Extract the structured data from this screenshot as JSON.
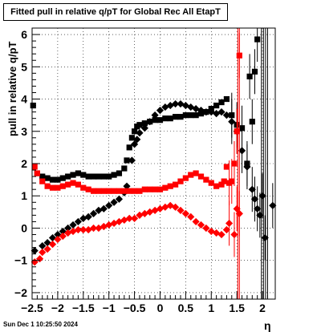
{
  "chart_data": {
    "type": "scatter",
    "title": "Fitted pull in relative q/pT for Global Rec All EtapT",
    "xlabel": "η",
    "ylabel": "pull in relative q/pT",
    "xlim": [
      -2.5,
      2.25
    ],
    "ylim": [
      -2.2,
      6.2
    ],
    "x_ticks": [
      "−2.5",
      "−2",
      "−1.5",
      "−1",
      "−0.5",
      "0",
      "0.5",
      "1",
      "1.5",
      "2"
    ],
    "y_ticks": [
      "−2",
      "−1",
      "0",
      "1",
      "2",
      "3",
      "4",
      "5",
      "6"
    ],
    "grid": true,
    "series": [
      {
        "color": "#000000",
        "marker": "square",
        "points": [
          [
            -2.48,
            3.8
          ],
          [
            -2.4,
            1.7
          ],
          [
            -2.3,
            1.6
          ],
          [
            -2.2,
            1.55
          ],
          [
            -2.1,
            1.5
          ],
          [
            -2.0,
            1.5
          ],
          [
            -1.9,
            1.55
          ],
          [
            -1.8,
            1.6
          ],
          [
            -1.7,
            1.65
          ],
          [
            -1.6,
            1.7
          ],
          [
            -1.5,
            1.65
          ],
          [
            -1.4,
            1.6
          ],
          [
            -1.3,
            1.6
          ],
          [
            -1.2,
            1.6
          ],
          [
            -1.1,
            1.6
          ],
          [
            -1.0,
            1.6
          ],
          [
            -0.9,
            1.65
          ],
          [
            -0.8,
            1.7
          ],
          [
            -0.7,
            1.85
          ],
          [
            -0.65,
            2.1
          ],
          [
            -0.6,
            2.5
          ],
          [
            -0.55,
            2.8
          ],
          [
            -0.5,
            3.0
          ],
          [
            -0.45,
            3.15
          ],
          [
            -0.4,
            3.2
          ],
          [
            -0.3,
            3.25
          ],
          [
            -0.2,
            3.3
          ],
          [
            -0.1,
            3.35
          ],
          [
            0.0,
            3.35
          ],
          [
            0.1,
            3.4
          ],
          [
            0.2,
            3.4
          ],
          [
            0.3,
            3.45
          ],
          [
            0.4,
            3.45
          ],
          [
            0.5,
            3.5
          ],
          [
            0.6,
            3.5
          ],
          [
            0.7,
            3.5
          ],
          [
            0.8,
            3.55
          ],
          [
            0.9,
            3.6
          ],
          [
            1.0,
            3.7
          ],
          [
            1.1,
            3.8
          ],
          [
            1.2,
            3.9
          ],
          [
            1.3,
            4.0
          ],
          [
            1.4,
            3.5
          ],
          [
            1.5,
            3.2
          ],
          [
            1.6,
            3.1
          ],
          [
            1.7,
            2.0
          ],
          [
            1.75,
            4.7
          ],
          [
            1.8,
            3.3
          ],
          [
            1.85,
            4.85
          ],
          [
            1.9,
            5.85
          ]
        ]
      },
      {
        "color": "#000000",
        "marker": "diamond",
        "points": [
          [
            -2.45,
            -0.7
          ],
          [
            -2.3,
            -0.55
          ],
          [
            -2.2,
            -0.45
          ],
          [
            -2.1,
            -0.3
          ],
          [
            -2.0,
            -0.2
          ],
          [
            -1.9,
            -0.1
          ],
          [
            -1.8,
            0.0
          ],
          [
            -1.7,
            0.1
          ],
          [
            -1.6,
            0.2
          ],
          [
            -1.5,
            0.3
          ],
          [
            -1.4,
            0.35
          ],
          [
            -1.3,
            0.45
          ],
          [
            -1.2,
            0.55
          ],
          [
            -1.1,
            0.6
          ],
          [
            -1.0,
            0.7
          ],
          [
            -0.9,
            0.8
          ],
          [
            -0.8,
            0.9
          ],
          [
            -0.7,
            1.1
          ],
          [
            -0.65,
            1.3
          ],
          [
            -0.55,
            2.1
          ],
          [
            -0.5,
            2.6
          ],
          [
            -0.45,
            2.75
          ],
          [
            -0.4,
            2.95
          ],
          [
            -0.3,
            3.1
          ],
          [
            -0.2,
            3.3
          ],
          [
            -0.1,
            3.5
          ],
          [
            0.0,
            3.65
          ],
          [
            0.1,
            3.75
          ],
          [
            0.2,
            3.8
          ],
          [
            0.3,
            3.85
          ],
          [
            0.4,
            3.85
          ],
          [
            0.5,
            3.8
          ],
          [
            0.6,
            3.75
          ],
          [
            0.7,
            3.7
          ],
          [
            0.8,
            3.65
          ],
          [
            0.9,
            3.6
          ],
          [
            1.0,
            3.6
          ],
          [
            1.1,
            3.55
          ],
          [
            1.2,
            3.6
          ],
          [
            1.3,
            3.5
          ],
          [
            1.4,
            3.3
          ],
          [
            1.5,
            3.0
          ],
          [
            1.6,
            2.4
          ],
          [
            1.7,
            1.9
          ],
          [
            1.8,
            1.2
          ],
          [
            1.85,
            0.9
          ],
          [
            1.9,
            0.6
          ],
          [
            1.95,
            0.4
          ],
          [
            2.0,
            1.0
          ],
          [
            2.05,
            -0.3
          ],
          [
            2.2,
            0.7
          ]
        ]
      },
      {
        "color": "#ff0000",
        "marker": "square",
        "points": [
          [
            -2.45,
            1.9
          ],
          [
            -2.4,
            1.7
          ],
          [
            -2.3,
            1.45
          ],
          [
            -2.2,
            1.3
          ],
          [
            -2.1,
            1.25
          ],
          [
            -2.0,
            1.25
          ],
          [
            -1.9,
            1.3
          ],
          [
            -1.8,
            1.35
          ],
          [
            -1.7,
            1.4
          ],
          [
            -1.6,
            1.35
          ],
          [
            -1.5,
            1.25
          ],
          [
            -1.4,
            1.2
          ],
          [
            -1.3,
            1.15
          ],
          [
            -1.2,
            1.15
          ],
          [
            -1.1,
            1.15
          ],
          [
            -1.0,
            1.15
          ],
          [
            -0.9,
            1.15
          ],
          [
            -0.8,
            1.15
          ],
          [
            -0.7,
            1.15
          ],
          [
            -0.6,
            1.15
          ],
          [
            -0.5,
            1.15
          ],
          [
            -0.4,
            1.15
          ],
          [
            -0.3,
            1.2
          ],
          [
            -0.2,
            1.2
          ],
          [
            -0.1,
            1.2
          ],
          [
            0.0,
            1.2
          ],
          [
            0.1,
            1.25
          ],
          [
            0.2,
            1.3
          ],
          [
            0.3,
            1.35
          ],
          [
            0.4,
            1.45
          ],
          [
            0.5,
            1.55
          ],
          [
            0.6,
            1.65
          ],
          [
            0.7,
            1.7
          ],
          [
            0.8,
            1.6
          ],
          [
            0.9,
            1.5
          ],
          [
            1.0,
            1.4
          ],
          [
            1.1,
            1.3
          ],
          [
            1.2,
            1.35
          ],
          [
            1.25,
            1.45
          ],
          [
            1.3,
            1.9
          ],
          [
            1.35,
            1.4
          ],
          [
            1.4,
            1.45
          ],
          [
            1.45,
            2.0
          ],
          [
            1.5,
            3.0
          ],
          [
            1.55,
            5.35
          ]
        ]
      },
      {
        "color": "#ff0000",
        "marker": "diamond",
        "points": [
          [
            -2.45,
            -1.05
          ],
          [
            -2.35,
            -0.95
          ],
          [
            -2.3,
            -0.75
          ],
          [
            -2.2,
            -0.65
          ],
          [
            -2.1,
            -0.5
          ],
          [
            -2.0,
            -0.35
          ],
          [
            -1.9,
            -0.25
          ],
          [
            -1.8,
            -0.15
          ],
          [
            -1.7,
            -0.1
          ],
          [
            -1.6,
            -0.05
          ],
          [
            -1.5,
            -0.05
          ],
          [
            -1.4,
            -0.05
          ],
          [
            -1.3,
            0.0
          ],
          [
            -1.2,
            0.0
          ],
          [
            -1.1,
            0.05
          ],
          [
            -1.0,
            0.1
          ],
          [
            -0.9,
            0.15
          ],
          [
            -0.8,
            0.2
          ],
          [
            -0.7,
            0.25
          ],
          [
            -0.6,
            0.3
          ],
          [
            -0.5,
            0.3
          ],
          [
            -0.4,
            0.4
          ],
          [
            -0.3,
            0.45
          ],
          [
            -0.2,
            0.5
          ],
          [
            -0.1,
            0.55
          ],
          [
            0.0,
            0.6
          ],
          [
            0.1,
            0.65
          ],
          [
            0.2,
            0.7
          ],
          [
            0.3,
            0.65
          ],
          [
            0.4,
            0.55
          ],
          [
            0.5,
            0.45
          ],
          [
            0.6,
            0.35
          ],
          [
            0.7,
            0.2
          ],
          [
            0.8,
            0.1
          ],
          [
            0.9,
            0.0
          ],
          [
            1.0,
            -0.1
          ],
          [
            1.1,
            -0.15
          ],
          [
            1.2,
            -0.2
          ],
          [
            1.3,
            -0.05
          ],
          [
            1.35,
            0.15
          ],
          [
            1.45,
            -0.2
          ],
          [
            1.5,
            0.6
          ],
          [
            1.55,
            0.45
          ]
        ]
      }
    ]
  },
  "footer": {
    "timestamp": "Sun Dec  1 10:25:50 2024"
  }
}
